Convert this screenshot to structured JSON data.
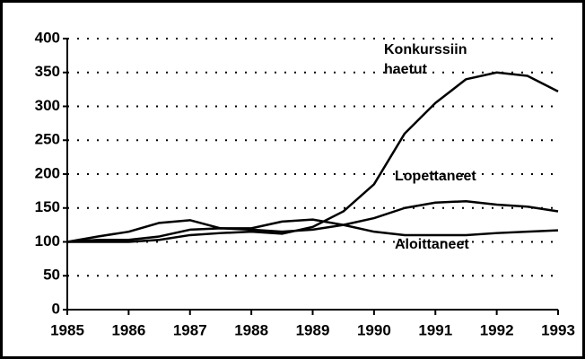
{
  "chart_data": {
    "type": "line",
    "x": [
      1985,
      1985.5,
      1986,
      1986.5,
      1987,
      1987.5,
      1988,
      1988.5,
      1989,
      1989.5,
      1990,
      1990.5,
      1991,
      1991.5,
      1992,
      1992.5,
      1993
    ],
    "series": [
      {
        "name": "Konkurssiin haetut",
        "color": "#000000",
        "values": [
          100,
          100,
          100,
          103,
          110,
          113,
          115,
          112,
          122,
          145,
          185,
          260,
          305,
          340,
          350,
          345,
          322
        ]
      },
      {
        "name": "Lopettaneet",
        "color": "#000000",
        "values": [
          100,
          103,
          103,
          108,
          118,
          120,
          118,
          115,
          118,
          125,
          135,
          150,
          158,
          160,
          155,
          152,
          145
        ]
      },
      {
        "name": "Aloittaneet",
        "color": "#000000",
        "values": [
          100,
          108,
          115,
          128,
          132,
          120,
          120,
          130,
          133,
          125,
          115,
          110,
          110,
          110,
          113,
          115,
          117
        ]
      }
    ],
    "xlim": [
      1985,
      1993
    ],
    "xticks": [
      1985,
      1986,
      1987,
      1988,
      1989,
      1990,
      1991,
      1992,
      1993
    ],
    "ylim": [
      0,
      400
    ],
    "yticks": [
      0,
      50,
      100,
      150,
      200,
      250,
      300,
      350,
      400
    ],
    "grid": true
  }
}
